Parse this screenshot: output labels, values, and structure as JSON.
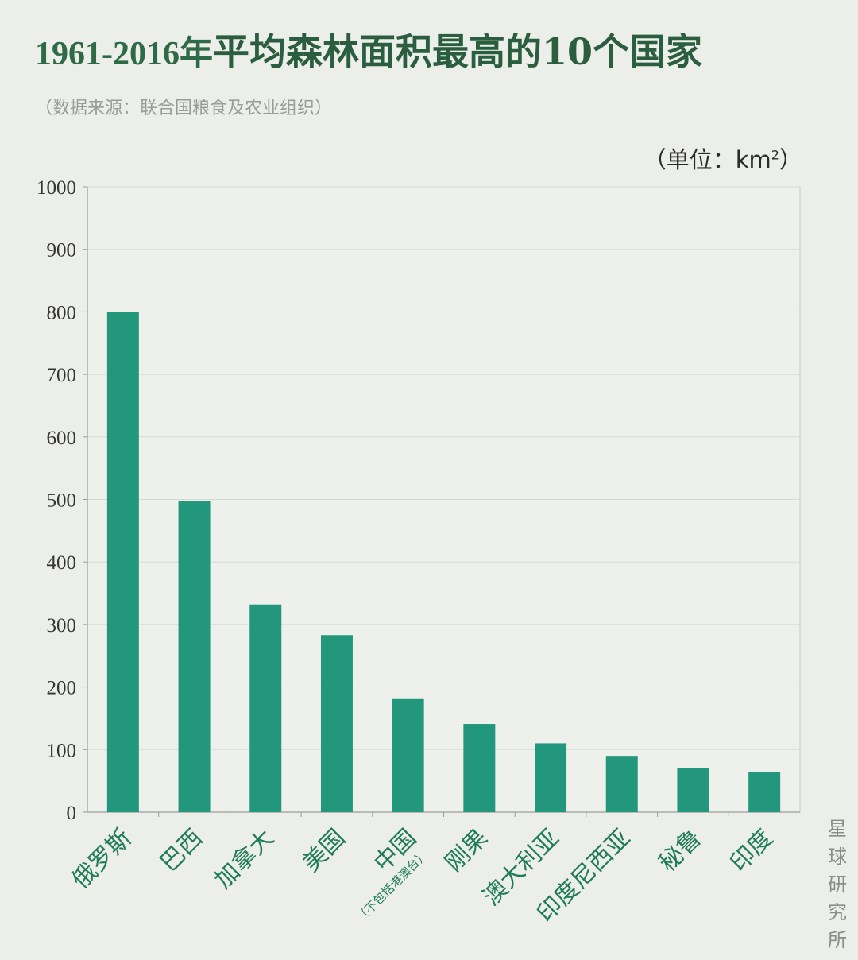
{
  "header": {
    "title_year": "1961-2016年",
    "title_main": "平均森林面积最高的10个国家",
    "source": "（数据来源：联合国粮食及农业组织）",
    "unit": "（单位：km",
    "unit_sup": "2",
    "unit_close": "）"
  },
  "watermark": [
    "星",
    "球",
    "研",
    "究",
    "所"
  ],
  "colors": {
    "bar": "#23977c",
    "label": "#1f7a5c",
    "title": "#2a5e3e",
    "background": "#eceee9"
  },
  "chart_data": {
    "type": "bar",
    "categories": [
      "俄罗斯",
      "巴西",
      "加拿大",
      "美国",
      "中国",
      "刚果",
      "澳大利亚",
      "印度尼西亚",
      "秘鲁",
      "印度"
    ],
    "category_notes": [
      "",
      "",
      "",
      "",
      "（不包括港澳台）",
      "",
      "",
      "",
      "",
      ""
    ],
    "values": [
      800,
      497,
      332,
      283,
      182,
      141,
      110,
      90,
      71,
      64
    ],
    "ylim": [
      0,
      1000
    ],
    "yticks": [
      0,
      100,
      200,
      300,
      400,
      500,
      600,
      700,
      800,
      900,
      1000
    ],
    "grid": true,
    "title": "1961-2016年平均森林面积最高的10个国家",
    "ylabel": "（单位：km2）",
    "xlabel": ""
  }
}
